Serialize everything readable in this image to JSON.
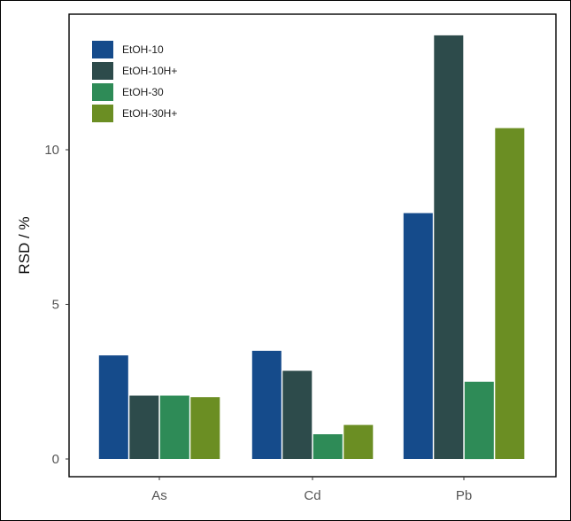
{
  "chart_data": {
    "type": "bar",
    "categories": [
      "As",
      "Cd",
      "Pb"
    ],
    "series": [
      {
        "name": "EtOH-10",
        "color": "#154b8b",
        "values": [
          3.35,
          3.5,
          7.95
        ]
      },
      {
        "name": "EtOH-10H+",
        "color": "#2d4b4b",
        "values": [
          2.05,
          2.85,
          13.7
        ]
      },
      {
        "name": "EtOH-30",
        "color": "#2e8b57",
        "values": [
          2.05,
          0.8,
          2.5
        ]
      },
      {
        "name": "EtOH-30H+",
        "color": "#6b8e23",
        "values": [
          2.0,
          1.1,
          10.7
        ]
      }
    ],
    "title": "",
    "xlabel": "",
    "ylabel": "RSD / %",
    "ylim": [
      0,
      14.3
    ],
    "yticks": [
      0,
      5,
      10
    ],
    "grid": false,
    "legend_position": "top-left"
  }
}
